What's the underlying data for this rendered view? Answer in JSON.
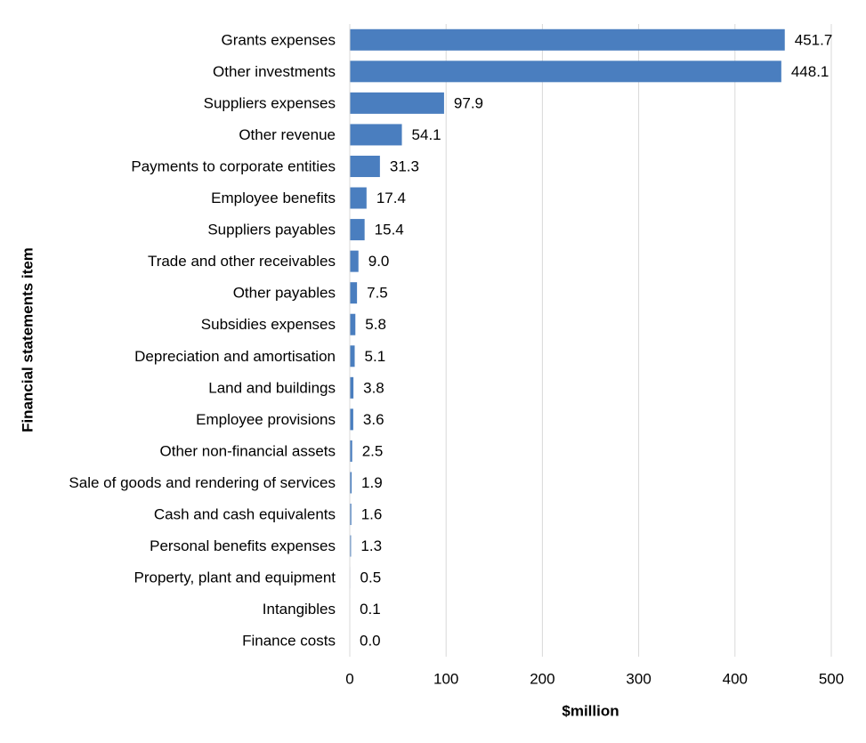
{
  "chart_data": {
    "type": "bar",
    "orientation": "horizontal",
    "categories": [
      "Grants expenses",
      "Other investments",
      "Suppliers expenses",
      "Other revenue",
      "Payments to corporate entities",
      "Employee benefits",
      "Suppliers payables",
      "Trade and other receivables",
      "Other payables",
      "Subsidies expenses",
      "Depreciation and amortisation",
      "Land and buildings",
      "Employee provisions",
      "Other non-financial assets",
      "Sale of goods and rendering of services",
      "Cash and cash equivalents",
      "Personal benefits expenses",
      "Property, plant and equipment",
      "Intangibles",
      "Finance costs"
    ],
    "values": [
      451.7,
      448.1,
      97.9,
      54.1,
      31.3,
      17.4,
      15.4,
      9.0,
      7.5,
      5.8,
      5.1,
      3.8,
      3.6,
      2.5,
      1.9,
      1.6,
      1.3,
      0.5,
      0.1,
      0.0
    ],
    "data_labels": [
      "451.7",
      "448.1",
      "97.9",
      "54.1",
      "31.3",
      "17.4",
      "15.4",
      "9.0",
      "7.5",
      "5.8",
      "5.1",
      "3.8",
      "3.6",
      "2.5",
      "1.9",
      "1.6",
      "1.3",
      "0.5",
      "0.1",
      "0.0"
    ],
    "xlabel": "$million",
    "ylabel": "Financial statements item",
    "xlim": [
      0,
      500
    ],
    "xticks": [
      0,
      100,
      200,
      300,
      400,
      500
    ],
    "xtick_labels": [
      "0",
      "100",
      "200",
      "300",
      "400",
      "500"
    ],
    "grid": "vertical",
    "legend": "none",
    "bar_color": "#4a7ebf",
    "grid_color": "#d9d9d9"
  }
}
